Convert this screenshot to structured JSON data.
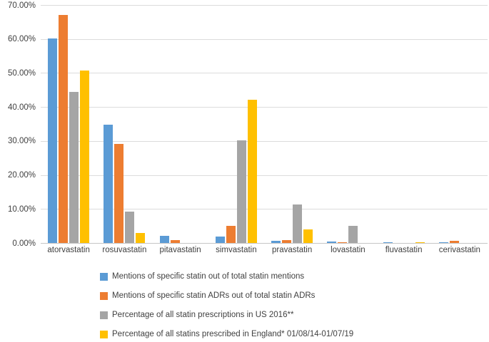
{
  "figure": {
    "background_color": "#ffffff",
    "gridline_color": "#dcdcdc",
    "axis_line_color": "#c6c6c6",
    "text_color": "#404040"
  },
  "chart_data": {
    "type": "bar",
    "title": "",
    "xlabel": "",
    "ylabel": "",
    "ylim": [
      0,
      70
    ],
    "y_tick_step": 10,
    "y_tick_labels": [
      "0.00%",
      "10.00%",
      "20.00%",
      "30.00%",
      "40.00%",
      "50.00%",
      "60.00%",
      "70.00%"
    ],
    "grid": "horizontal",
    "legend_position": "bottom-left",
    "categories": [
      "atorvastatin",
      "rosuvastatin",
      "pitavastatin",
      "simvastatin",
      "pravastatin",
      "lovastatin",
      "fluvastatin",
      "cerivastatin"
    ],
    "series": [
      {
        "name": "Mentions of specific statin out of total statin mentions",
        "color": "#5B9BD5",
        "values": [
          60.1,
          34.7,
          2.2,
          2.0,
          0.6,
          0.5,
          0.3,
          0.15
        ]
      },
      {
        "name": "Mentions of specific statin ADRs out of total statin ADRs",
        "color": "#ED7D31",
        "values": [
          67.0,
          29.1,
          0.8,
          5.0,
          0.8,
          0.3,
          0.0,
          0.6
        ]
      },
      {
        "name": "Percentage of all statin prescriptions in US 2016**",
        "color": "#A5A5A5",
        "values": [
          44.5,
          9.3,
          0.0,
          30.1,
          11.3,
          5.1,
          0.0,
          0.0
        ]
      },
      {
        "name": "Percentage of all statins prescribed in England* 01/08/14-01/07/19",
        "color": "#FFC000",
        "values": [
          50.7,
          3.0,
          0.0,
          42.2,
          4.0,
          0.0,
          0.2,
          0.0
        ]
      }
    ]
  }
}
